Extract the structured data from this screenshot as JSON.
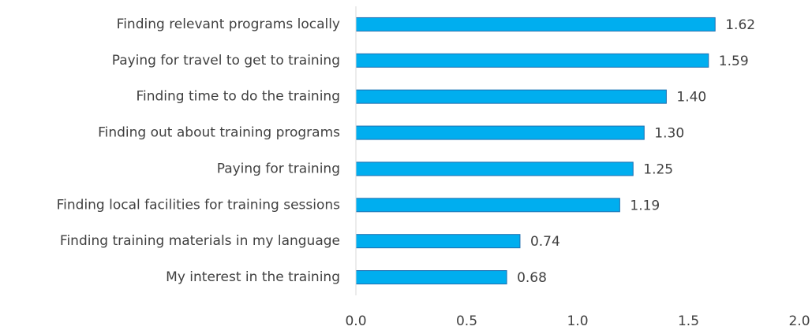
{
  "chart_data": {
    "type": "bar",
    "orientation": "horizontal",
    "categories": [
      "Finding relevant programs locally",
      "Paying for travel to get to training",
      "Finding time to do the training",
      "Finding out about training programs",
      "Paying for training",
      "Finding local facilities for training sessions",
      "Finding training materials in my language",
      "My interest in the training"
    ],
    "values": [
      1.62,
      1.59,
      1.4,
      1.3,
      1.25,
      1.19,
      0.74,
      0.68
    ],
    "value_labels": [
      "1.62",
      "1.59",
      "1.40",
      "1.30",
      "1.25",
      "1.19",
      "0.74",
      "0.68"
    ],
    "color": "#00aeef",
    "xlim": [
      0,
      2
    ],
    "xticks": [
      {
        "value": 0,
        "label": "0.0"
      },
      0.5,
      {
        "value": 1,
        "label": "1.0"
      },
      1.5,
      {
        "value": 2,
        "label": "2.0"
      }
    ],
    "grid": false
  }
}
